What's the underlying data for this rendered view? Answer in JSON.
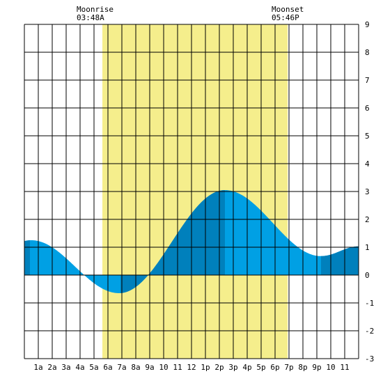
{
  "moon": {
    "rise_label": "Moonrise",
    "rise_time": "03:48A",
    "set_label": "Moonset",
    "set_time": "05:46P"
  },
  "chart_data": {
    "type": "area",
    "title": "",
    "xlabel": "",
    "ylabel": "",
    "xlim": [
      0,
      24
    ],
    "ylim": [
      -3,
      9
    ],
    "grid": true,
    "x_tick_labels": [
      "1a",
      "2a",
      "3a",
      "4a",
      "5a",
      "6a",
      "7a",
      "8a",
      "9a",
      "10",
      "11",
      "12",
      "1p",
      "2p",
      "3p",
      "4p",
      "5p",
      "6p",
      "7p",
      "8p",
      "9p",
      "10",
      "11"
    ],
    "y_ticks": [
      9,
      8,
      7,
      6,
      5,
      4,
      3,
      2,
      1,
      0,
      -1,
      -2,
      -3
    ],
    "daylight_hours": [
      5.6,
      18.9
    ],
    "extremes": [
      {
        "x": 0.5,
        "y": 1.25
      },
      {
        "x": 6.8,
        "y": -0.65
      },
      {
        "x": 14.4,
        "y": 3.05
      },
      {
        "x": 21.3,
        "y": 0.68
      }
    ],
    "end_value": 1.03,
    "dark_bands": [
      [
        0,
        0.4
      ],
      [
        6.9,
        9.0
      ],
      [
        9.0,
        14.4
      ],
      [
        21.3,
        24
      ]
    ],
    "colors": {
      "tide_light": "#00a0e4",
      "tide_dark": "#0080bc",
      "daylight": "#f5ee8c",
      "grid": "#000000"
    }
  }
}
